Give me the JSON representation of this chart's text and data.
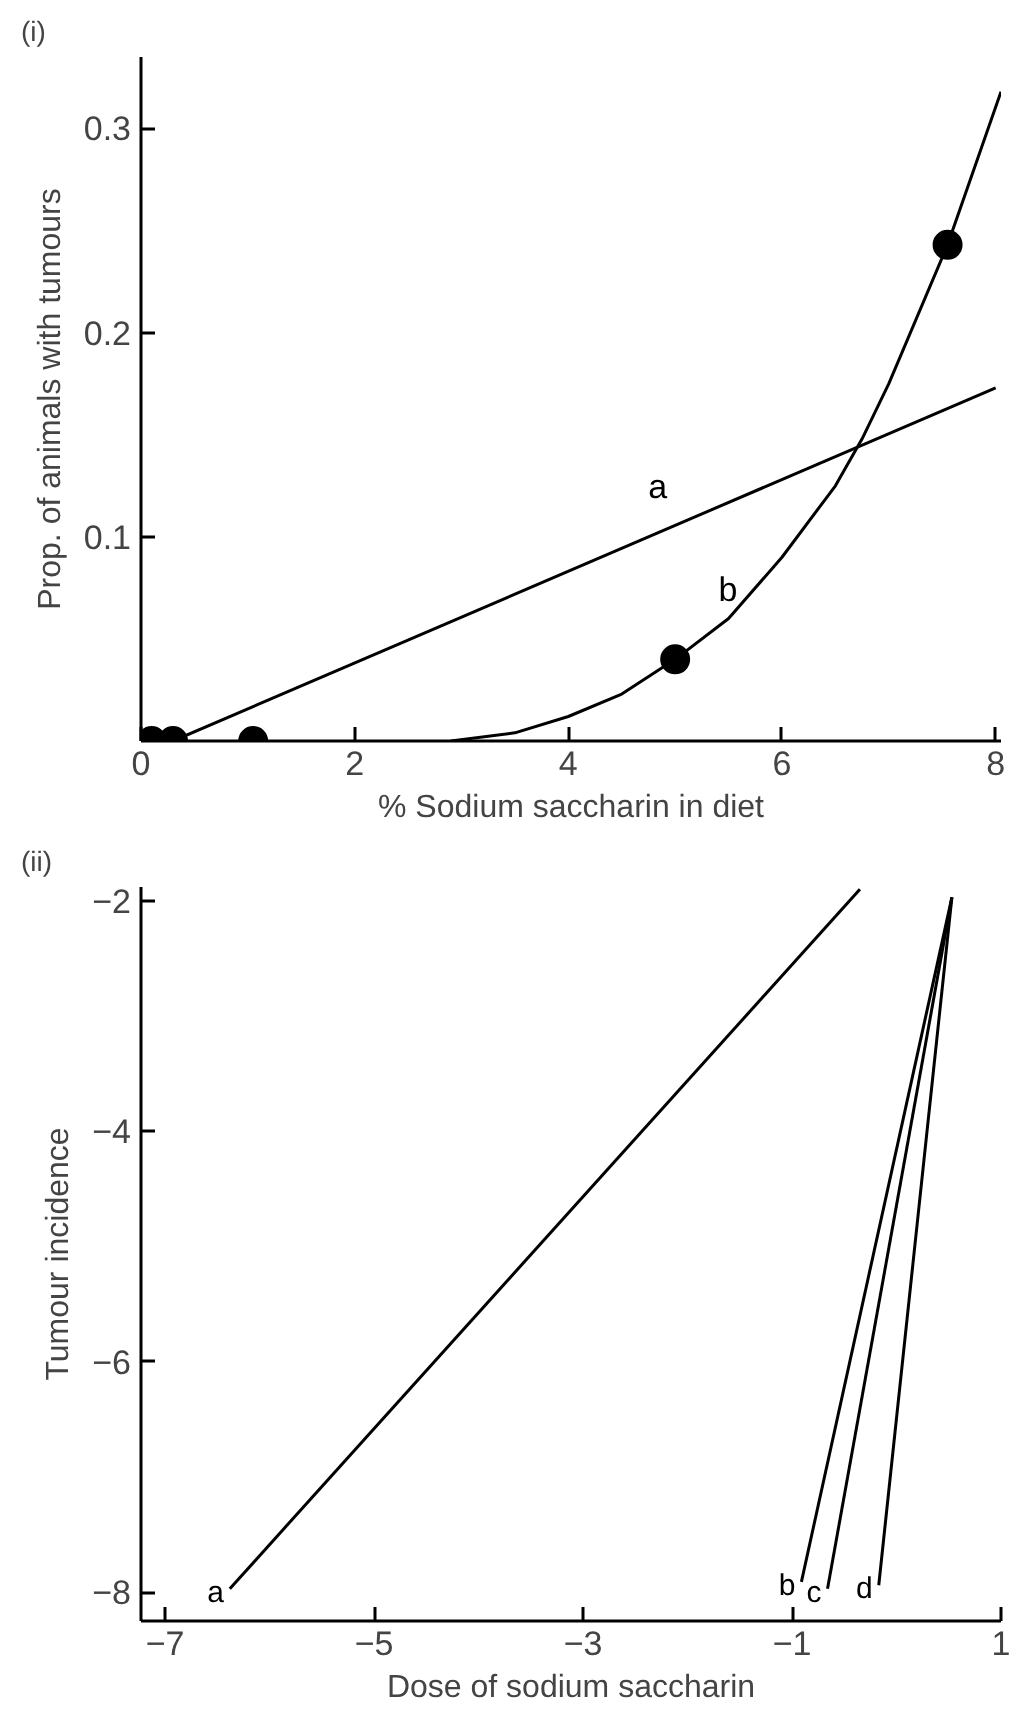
{
  "chart_data": [
    {
      "type": "line",
      "title": "(i)",
      "xlabel": "% Sodium saccharin in diet",
      "ylabel": "Prop. of animals with tumours",
      "xlim": [
        0,
        8.05
      ],
      "ylim": [
        0,
        0.335
      ],
      "xticks": [
        0,
        2,
        4,
        6,
        8
      ],
      "yticks": [
        0.1,
        0.2,
        0.3
      ],
      "grid": false,
      "series": [
        {
          "name": "a",
          "color": "#000000",
          "line_style": "solid",
          "marker": "none",
          "x": [
            0.3,
            8
          ],
          "values": [
            0,
            0.173
          ]
        },
        {
          "name": "b",
          "color": "#000000",
          "line_style": "solid",
          "marker": "none",
          "x": [
            2.9,
            3.5,
            4,
            4.5,
            5,
            5.5,
            6,
            6.5,
            6.75,
            7,
            7.55,
            8.05
          ],
          "values": [
            0,
            0.004,
            0.012,
            0.023,
            0.04,
            0.06,
            0.09,
            0.125,
            0.148,
            0.175,
            0.243,
            0.318
          ]
        },
        {
          "type": "scatter",
          "color": "#000000",
          "marker": "circle",
          "x": [
            0.1,
            0.3,
            1.05,
            5,
            7.55
          ],
          "values": [
            0,
            0,
            0,
            0.04,
            0.243
          ]
        }
      ]
    },
    {
      "type": "line",
      "title": "(ii)",
      "xlabel": "Dose of sodium saccharin",
      "ylabel": "Tumour incidence",
      "xlim": [
        -7.23,
        1
      ],
      "ylim": [
        -8.25,
        -1.88
      ],
      "xticks": [
        -7,
        -5,
        -3,
        -1,
        1
      ],
      "yticks": [
        -2,
        -4,
        -6,
        -8
      ],
      "grid": false,
      "series": [
        {
          "name": "a",
          "color": "#000000",
          "line_style": "solid",
          "marker": "none",
          "x": [
            -6.38,
            -0.35
          ],
          "values": [
            -7.97,
            -1.9
          ]
        },
        {
          "name": "b",
          "color": "#000000",
          "line_style": "solid",
          "marker": "none",
          "x": [
            -0.91,
            0.53
          ],
          "values": [
            -7.91,
            -1.97
          ]
        },
        {
          "name": "c",
          "color": "#000000",
          "line_style": "solid",
          "marker": "none",
          "x": [
            -0.66,
            0.53
          ],
          "values": [
            -7.97,
            -1.97
          ]
        },
        {
          "name": "d",
          "color": "#000000",
          "line_style": "solid",
          "marker": "none",
          "x": [
            -0.17,
            0.53
          ],
          "values": [
            -7.94,
            -1.97
          ]
        }
      ]
    }
  ]
}
